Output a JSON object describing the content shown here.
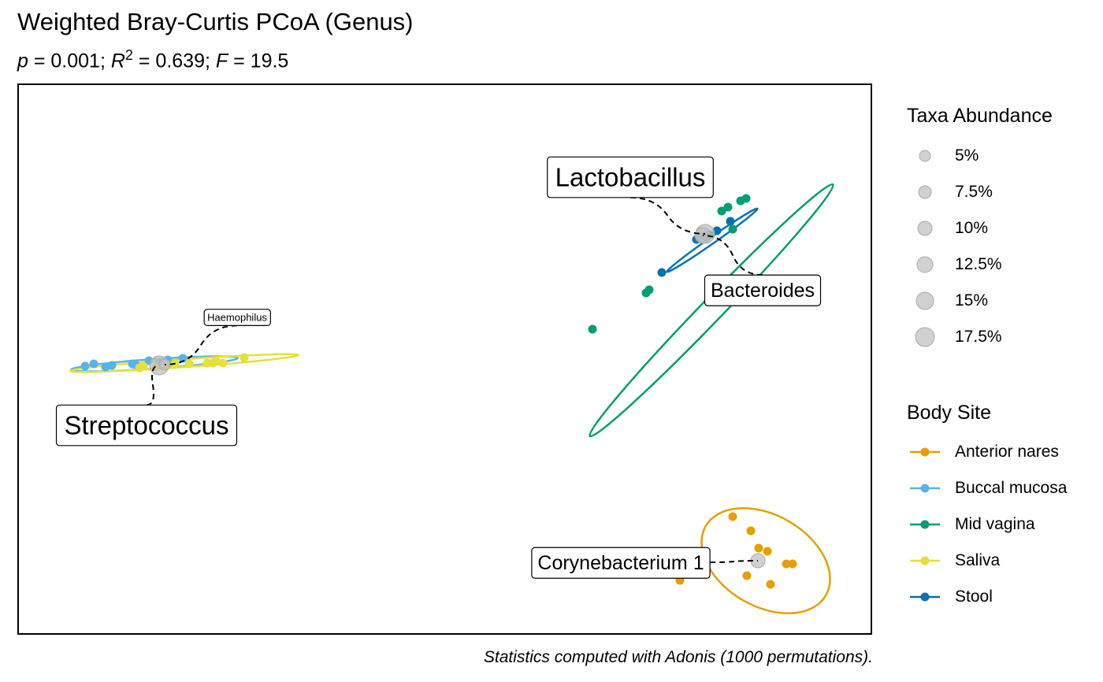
{
  "title": "Weighted Bray-Curtis PCoA (Genus)",
  "subtitle": {
    "p_label": "p",
    "p_value": " = 0.001; ",
    "r_label": "R",
    "r_exp": "2",
    "r_value": " = 0.639; ",
    "f_label": "F",
    "f_value": " = 19.5"
  },
  "caption": "Statistics computed with Adonis (1000 permutations).",
  "chart_data": {
    "type": "scatter",
    "title": "Weighted Bray-Curtis PCoA (Genus)",
    "xlabel": "",
    "ylabel": "",
    "grid": false,
    "xlim": [
      0,
      1085
    ],
    "ylim": [
      0,
      700
    ],
    "legend_position": "right",
    "colors": {
      "Anterior nares": "#E69F00",
      "Buccal mucosa": "#56B4E9",
      "Mid vagina": "#009E73",
      "Saliva": "#E6E03A",
      "Stool": "#0072B2",
      "taxa": "#BFBFBF"
    },
    "series": [
      {
        "name": "Anterior nares",
        "x": [
          908,
          931,
          941,
          952,
          976,
          984,
          926,
          956,
          841
        ],
        "y": [
          550,
          568,
          590,
          594,
          610,
          610,
          625,
          636,
          631
        ],
        "ellipse": {
          "cx": 950,
          "cy": 606,
          "rx": 88,
          "ry": 58,
          "angle": 30
        }
      },
      {
        "name": "Buccal mucosa",
        "x": [
          86,
          97,
          112,
          146,
          150,
          167,
          181,
          191,
          210,
          178,
          120
        ],
        "y": [
          359,
          356,
          360,
          356,
          357,
          352,
          354,
          351,
          349,
          358,
          358
        ],
        "ellipse": {
          "cx": 174,
          "cy": 356,
          "rx": 106,
          "ry": 6,
          "angle": -4
        }
      },
      {
        "name": "Mid vagina",
        "x": [
          730,
          798,
          802,
          894,
          902,
          918,
          925,
          878,
          908
        ],
        "y": [
          312,
          266,
          262,
          162,
          157,
          149,
          146,
          192,
          185
        ],
        "ellipse": {
          "cx": 881,
          "cy": 288,
          "rx": 222,
          "ry": 14,
          "angle": -46
        }
      },
      {
        "name": "Saliva",
        "x": [
          155,
          160,
          189,
          200,
          218,
          241,
          248,
          252,
          261,
          288,
          176
        ],
        "y": [
          361,
          359,
          356,
          356,
          356,
          355,
          355,
          352,
          355,
          348,
          360
        ],
        "ellipse": {
          "cx": 212,
          "cy": 355,
          "rx": 145,
          "ry": 5,
          "angle": -4
        }
      },
      {
        "name": "Stool",
        "x": [
          818,
          862,
          874,
          888,
          905,
          870
        ],
        "y": [
          240,
          198,
          193,
          187,
          175,
          194
        ],
        "ellipse": {
          "cx": 882,
          "cy": 199,
          "rx": 70,
          "ry": 4,
          "angle": -35
        }
      }
    ],
    "taxa": [
      {
        "name": "Lactobacillus",
        "x": 873,
        "y": 191,
        "abundance": 17.5,
        "label_x": 778,
        "label_y": 119,
        "label_size": 33
      },
      {
        "name": "Bacteroides",
        "x": 870,
        "y": 193,
        "abundance": 12.5,
        "label_x": 946,
        "label_y": 262,
        "label_size": 25
      },
      {
        "name": "Streptococcus",
        "x": 180,
        "y": 358,
        "abundance": 17.5,
        "label_x": 164,
        "label_y": 434,
        "label_size": 33
      },
      {
        "name": "Haemophilus",
        "x": 187,
        "y": 357,
        "abundance": 5,
        "label_x": 279,
        "label_y": 297,
        "label_size": 13
      },
      {
        "name": "Corynebacterium 1",
        "x": 940,
        "y": 606,
        "abundance": 10,
        "label_x": 766,
        "label_y": 608,
        "label_size": 25
      }
    ]
  },
  "legend_abundance": {
    "title": "Taxa Abundance",
    "items": [
      {
        "label": "5%",
        "value": 5
      },
      {
        "label": "7.5%",
        "value": 7.5
      },
      {
        "label": "10%",
        "value": 10
      },
      {
        "label": "12.5%",
        "value": 12.5
      },
      {
        "label": "15%",
        "value": 15
      },
      {
        "label": "17.5%",
        "value": 17.5
      }
    ]
  },
  "legend_body_site": {
    "title": "Body Site",
    "items": [
      {
        "label": "Anterior nares",
        "color": "#E69F00"
      },
      {
        "label": "Buccal mucosa",
        "color": "#56B4E9"
      },
      {
        "label": "Mid vagina",
        "color": "#009E73"
      },
      {
        "label": "Saliva",
        "color": "#E6E03A"
      },
      {
        "label": "Stool",
        "color": "#0072B2"
      }
    ]
  }
}
